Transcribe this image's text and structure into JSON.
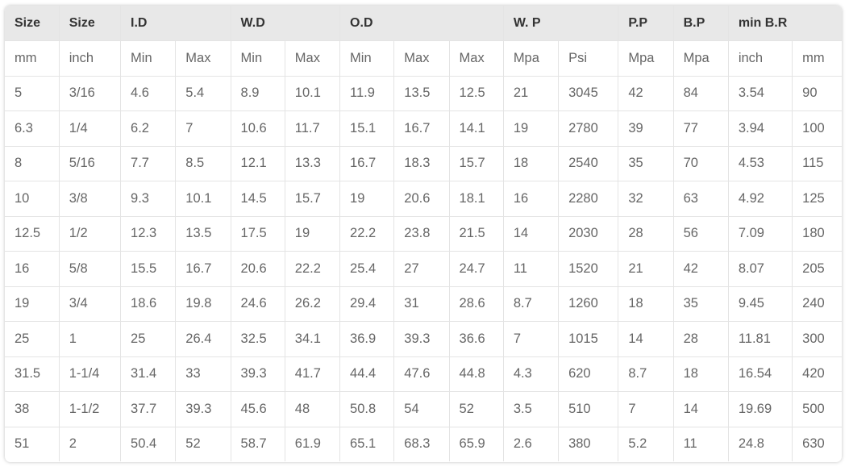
{
  "table": {
    "group_headers": [
      {
        "label": "Size",
        "span": 1
      },
      {
        "label": "Size",
        "span": 1
      },
      {
        "label": "I.D",
        "span": 2
      },
      {
        "label": "W.D",
        "span": 2
      },
      {
        "label": "O.D",
        "span": 3
      },
      {
        "label": "W. P",
        "span": 2
      },
      {
        "label": "P.P",
        "span": 1
      },
      {
        "label": "B.P",
        "span": 1
      },
      {
        "label": "min B.R",
        "span": 2
      }
    ],
    "unit_row": [
      "mm",
      "inch",
      "Min",
      "Max",
      "Min",
      "Max",
      "Min",
      "Max",
      "Max",
      "Mpa",
      "Psi",
      "Mpa",
      "Mpa",
      "inch",
      "mm"
    ],
    "rows": [
      [
        "5",
        "3/16",
        "4.6",
        "5.4",
        "8.9",
        "10.1",
        "11.9",
        "13.5",
        "12.5",
        "21",
        "3045",
        "42",
        "84",
        "3.54",
        "90"
      ],
      [
        "6.3",
        "1/4",
        "6.2",
        "7",
        "10.6",
        "11.7",
        "15.1",
        "16.7",
        "14.1",
        "19",
        "2780",
        "39",
        "77",
        "3.94",
        "100"
      ],
      [
        "8",
        "5/16",
        "7.7",
        "8.5",
        "12.1",
        "13.3",
        "16.7",
        "18.3",
        "15.7",
        "18",
        "2540",
        "35",
        "70",
        "4.53",
        "115"
      ],
      [
        "10",
        "3/8",
        "9.3",
        "10.1",
        "14.5",
        "15.7",
        "19",
        "20.6",
        "18.1",
        "16",
        "2280",
        "32",
        "63",
        "4.92",
        "125"
      ],
      [
        "12.5",
        "1/2",
        "12.3",
        "13.5",
        "17.5",
        "19",
        "22.2",
        "23.8",
        "21.5",
        "14",
        "2030",
        "28",
        "56",
        "7.09",
        "180"
      ],
      [
        "16",
        "5/8",
        "15.5",
        "16.7",
        "20.6",
        "22.2",
        "25.4",
        "27",
        "24.7",
        "11",
        "1520",
        "21",
        "42",
        "8.07",
        "205"
      ],
      [
        "19",
        "3/4",
        "18.6",
        "19.8",
        "24.6",
        "26.2",
        "29.4",
        "31",
        "28.6",
        "8.7",
        "1260",
        "18",
        "35",
        "9.45",
        "240"
      ],
      [
        "25",
        "1",
        "25",
        "26.4",
        "32.5",
        "34.1",
        "36.9",
        "39.3",
        "36.6",
        "7",
        "1015",
        "14",
        "28",
        "11.81",
        "300"
      ],
      [
        "31.5",
        "1-1/4",
        "31.4",
        "33",
        "39.3",
        "41.7",
        "44.4",
        "47.6",
        "44.8",
        "4.3",
        "620",
        "8.7",
        "18",
        "16.54",
        "420"
      ],
      [
        "38",
        "1-1/2",
        "37.7",
        "39.3",
        "45.6",
        "48",
        "50.8",
        "54",
        "52",
        "3.5",
        "510",
        "7",
        "14",
        "19.69",
        "500"
      ],
      [
        "51",
        "2",
        "50.4",
        "52",
        "58.7",
        "61.9",
        "65.1",
        "68.3",
        "65.9",
        "2.6",
        "380",
        "5.2",
        "11",
        "24.8",
        "630"
      ]
    ]
  },
  "colors": {
    "header_bg": "#e8e8e8",
    "header_text": "#333333",
    "cell_text": "#666666",
    "border": "#e4e4e4"
  }
}
